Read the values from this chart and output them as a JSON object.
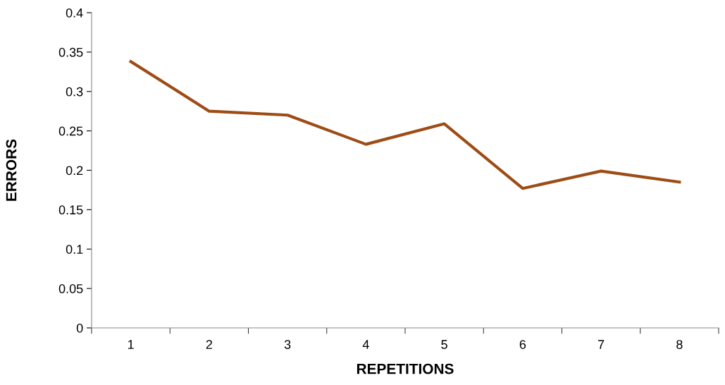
{
  "chart_data": {
    "type": "line",
    "xlabel": "REPETITIONS",
    "ylabel": "ERRORS",
    "categories": [
      "1",
      "2",
      "3",
      "4",
      "5",
      "6",
      "7",
      "8"
    ],
    "series": [
      {
        "color": "#9e4c16",
        "values": [
          0.338,
          0.275,
          0.27,
          0.233,
          0.259,
          0.177,
          0.199,
          0.185
        ]
      }
    ],
    "ylim": [
      0,
      0.4
    ],
    "yticks": [
      0,
      0.05,
      0.1,
      0.15,
      0.2,
      0.25,
      0.3,
      0.35,
      0.4
    ],
    "grid": false,
    "marker": "none",
    "line_style": "solid"
  }
}
